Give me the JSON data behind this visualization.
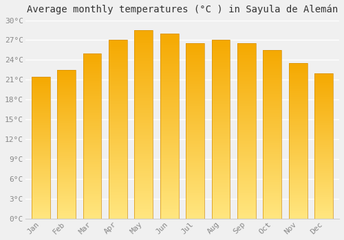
{
  "title": "Average monthly temperatures (°C ) in Sayula de Alemán",
  "months": [
    "Jan",
    "Feb",
    "Mar",
    "Apr",
    "May",
    "Jun",
    "Jul",
    "Aug",
    "Sep",
    "Oct",
    "Nov",
    "Dec"
  ],
  "values": [
    21.5,
    22.5,
    25.0,
    27.0,
    28.5,
    28.0,
    26.5,
    27.0,
    26.5,
    25.5,
    23.5,
    22.0
  ],
  "bar_color_top": "#F5A800",
  "bar_color_bottom": "#FFE680",
  "bar_edge_color": "#D4900A",
  "ylim": [
    0,
    30
  ],
  "ytick_step": 3,
  "background_color": "#f0f0f0",
  "grid_color": "#ffffff",
  "title_fontsize": 10,
  "tick_fontsize": 8,
  "tick_color": "#888888"
}
